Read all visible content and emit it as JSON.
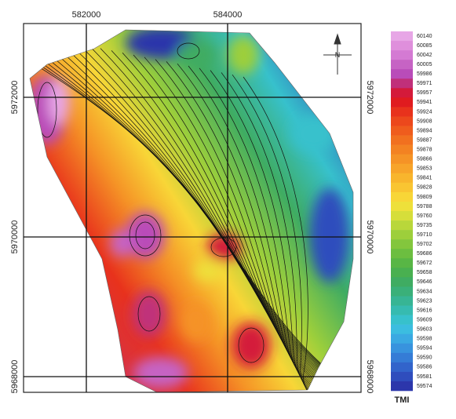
{
  "map": {
    "grid": {
      "x_labels": [
        582000,
        584000
      ],
      "y_labels": [
        5972000,
        5970000,
        5968000
      ]
    },
    "north_arrow": {
      "label": "N"
    },
    "legend": {
      "title": "TMI",
      "entries": [
        {
          "label": 60140,
          "color": "#e7a6e6"
        },
        {
          "label": 60085,
          "color": "#df8fdc"
        },
        {
          "label": 60042,
          "color": "#d47ad3"
        },
        {
          "label": 60005,
          "color": "#c663c4"
        },
        {
          "label": 59986,
          "color": "#b94cb9"
        },
        {
          "label": 59971,
          "color": "#c0307a"
        },
        {
          "label": 59957,
          "color": "#d41a3a"
        },
        {
          "label": 59941,
          "color": "#e01b1f"
        },
        {
          "label": 59924,
          "color": "#e8321c"
        },
        {
          "label": 59908,
          "color": "#ec481c"
        },
        {
          "label": 59894,
          "color": "#ef5c1d"
        },
        {
          "label": 59887,
          "color": "#f1701f"
        },
        {
          "label": 59878,
          "color": "#f38222"
        },
        {
          "label": 59866,
          "color": "#f59326"
        },
        {
          "label": 59853,
          "color": "#f7a42a"
        },
        {
          "label": 59841,
          "color": "#f8b52d"
        },
        {
          "label": 59828,
          "color": "#f9c532"
        },
        {
          "label": 59809,
          "color": "#f8d637"
        },
        {
          "label": 59788,
          "color": "#eee03a"
        },
        {
          "label": 59760,
          "color": "#d6de3a"
        },
        {
          "label": 59735,
          "color": "#b9d73a"
        },
        {
          "label": 59710,
          "color": "#9dcf3b"
        },
        {
          "label": 59702,
          "color": "#83c63d"
        },
        {
          "label": 59686,
          "color": "#6cbe40"
        },
        {
          "label": 59672,
          "color": "#58b645"
        },
        {
          "label": 59658,
          "color": "#49b050"
        },
        {
          "label": 59646,
          "color": "#3fac62"
        },
        {
          "label": 59634,
          "color": "#3ab079"
        },
        {
          "label": 59623,
          "color": "#37b594"
        },
        {
          "label": 59616,
          "color": "#36bbb0"
        },
        {
          "label": 59609,
          "color": "#37c1cc"
        },
        {
          "label": 59603,
          "color": "#3bbde0"
        },
        {
          "label": 59598,
          "color": "#3aa9e2"
        },
        {
          "label": 59594,
          "color": "#3893de"
        },
        {
          "label": 59590,
          "color": "#357cd6"
        },
        {
          "label": 59586,
          "color": "#3264cb"
        },
        {
          "label": 59581,
          "color": "#2f4dbd"
        },
        {
          "label": 59574,
          "color": "#2c36ab"
        }
      ]
    }
  }
}
